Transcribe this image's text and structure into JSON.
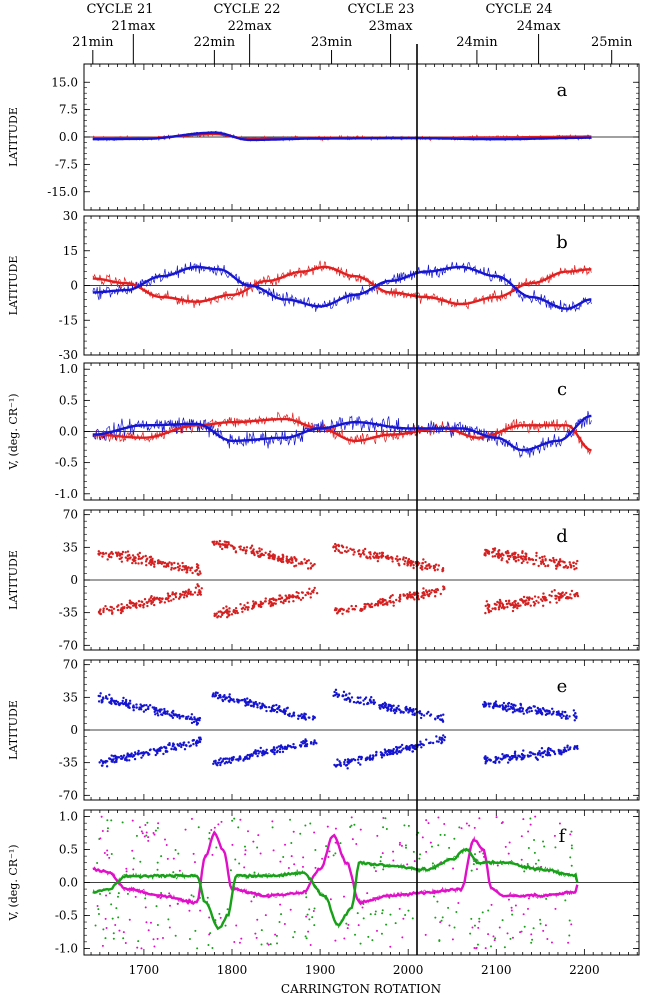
{
  "header": {
    "cycles": [
      "CYCLE 21",
      "CYCLE 22",
      "CYCLE 23",
      "CYCLE 24"
    ],
    "events": [
      {
        "label": "21min",
        "cr": 1642
      },
      {
        "label": "21max",
        "cr": 1688
      },
      {
        "label": "22min",
        "cr": 1780
      },
      {
        "label": "22max",
        "cr": 1820
      },
      {
        "label": "23min",
        "cr": 1913
      },
      {
        "label": "23max",
        "cr": 1980
      },
      {
        "label": "24min",
        "cr": 2078
      },
      {
        "label": "24max",
        "cr": 2148
      },
      {
        "label": "25min",
        "cr": 2231
      }
    ]
  },
  "xaxis": {
    "label": "CARRINGTON ROTATION",
    "range": [
      1632,
      2262
    ],
    "ticks": [
      "1700",
      "1800",
      "1900",
      "2000",
      "2100",
      "2200"
    ],
    "marker_cr": 2010
  },
  "chart_data": [
    {
      "panel": "a",
      "type": "line",
      "ylabel": "LATITUDE",
      "ylim": [
        -20,
        20
      ],
      "yticks": [
        "15.0",
        "7.5",
        "0.0",
        "-7.5",
        "-15.0"
      ],
      "yticks_values": [
        15,
        7.5,
        0,
        -7.5,
        -15
      ],
      "series": [
        {
          "color": "#e02020",
          "smooth_nodes": [
            [
              1642,
              -0.2
            ],
            [
              1700,
              -0.3
            ],
            [
              1780,
              0.8
            ],
            [
              1820,
              -0.5
            ],
            [
              1900,
              -0.2
            ],
            [
              2000,
              -0.3
            ],
            [
              2100,
              -0.1
            ],
            [
              2208,
              0.1
            ]
          ],
          "noise": 0.8
        },
        {
          "color": "#1515d0",
          "smooth_nodes": [
            [
              1642,
              -0.6
            ],
            [
              1700,
              -0.5
            ],
            [
              1780,
              1.2
            ],
            [
              1820,
              -0.8
            ],
            [
              1900,
              -0.4
            ],
            [
              2000,
              -0.3
            ],
            [
              2100,
              -0.6
            ],
            [
              2208,
              -0.2
            ]
          ],
          "noise": 0.6
        }
      ]
    },
    {
      "panel": "b",
      "type": "line",
      "ylabel": "LATITUDE",
      "ylim": [
        -30,
        30
      ],
      "yticks": [
        "30",
        "15",
        "0",
        "-15",
        "-30"
      ],
      "yticks_values": [
        30,
        15,
        0,
        -15,
        -30
      ],
      "series": [
        {
          "color": "#e02020",
          "smooth_nodes": [
            [
              1642,
              3
            ],
            [
              1680,
              1
            ],
            [
              1720,
              -5
            ],
            [
              1760,
              -7
            ],
            [
              1800,
              -4
            ],
            [
              1840,
              2
            ],
            [
              1880,
              6
            ],
            [
              1905,
              8
            ],
            [
              1940,
              4
            ],
            [
              1980,
              -3
            ],
            [
              2020,
              -5
            ],
            [
              2060,
              -8
            ],
            [
              2100,
              -5
            ],
            [
              2140,
              1
            ],
            [
              2180,
              6
            ],
            [
              2208,
              7
            ]
          ],
          "noise": 3.5
        },
        {
          "color": "#1515d0",
          "smooth_nodes": [
            [
              1642,
              -3
            ],
            [
              1680,
              -2
            ],
            [
              1720,
              4
            ],
            [
              1760,
              8
            ],
            [
              1785,
              7
            ],
            [
              1820,
              0
            ],
            [
              1860,
              -6
            ],
            [
              1900,
              -9
            ],
            [
              1940,
              -4
            ],
            [
              1980,
              2
            ],
            [
              2020,
              6
            ],
            [
              2060,
              8
            ],
            [
              2100,
              4
            ],
            [
              2140,
              -5
            ],
            [
              2180,
              -10
            ],
            [
              2208,
              -6
            ]
          ],
          "noise": 4.0
        }
      ]
    },
    {
      "panel": "c",
      "type": "line",
      "ylabel": "V, (deg. CR⁻¹)",
      "ylim": [
        -1.1,
        1.1
      ],
      "yticks": [
        "1.0",
        "0.5",
        "0.0",
        "-0.5",
        "-1.0"
      ],
      "yticks_values": [
        1.0,
        0.5,
        0.0,
        -0.5,
        -1.0
      ],
      "series": [
        {
          "color": "#e02020",
          "smooth_nodes": [
            [
              1642,
              -0.05
            ],
            [
              1700,
              -0.1
            ],
            [
              1760,
              0.1
            ],
            [
              1800,
              0.15
            ],
            [
              1860,
              0.2
            ],
            [
              1900,
              0.05
            ],
            [
              1940,
              -0.15
            ],
            [
              1980,
              -0.05
            ],
            [
              2040,
              0.05
            ],
            [
              2080,
              -0.1
            ],
            [
              2130,
              0.1
            ],
            [
              2180,
              0.1
            ],
            [
              2208,
              -0.3
            ]
          ],
          "noise": 0.15
        },
        {
          "color": "#1515d0",
          "smooth_nodes": [
            [
              1642,
              -0.05
            ],
            [
              1700,
              0.1
            ],
            [
              1760,
              0.12
            ],
            [
              1800,
              -0.15
            ],
            [
              1860,
              -0.1
            ],
            [
              1900,
              0.05
            ],
            [
              1940,
              0.15
            ],
            [
              2000,
              0.05
            ],
            [
              2060,
              0.05
            ],
            [
              2100,
              -0.1
            ],
            [
              2130,
              -0.3
            ],
            [
              2170,
              -0.15
            ],
            [
              2208,
              0.25
            ]
          ],
          "noise": 0.2
        }
      ]
    },
    {
      "panel": "d",
      "type": "scatter",
      "ylabel": "LATITUDE",
      "ylim": [
        -75,
        75
      ],
      "yticks": [
        "70",
        "35",
        "0",
        "-35",
        "-70"
      ],
      "yticks_values": [
        70,
        35,
        0,
        -35,
        -70
      ],
      "color": "#d42020",
      "groups": [
        {
          "x": [
            1648,
            1765
          ],
          "north": [
            30,
            10
          ],
          "south": [
            -35,
            -10
          ],
          "spread": 8
        },
        {
          "x": [
            1778,
            1895
          ],
          "north": [
            40,
            15
          ],
          "south": [
            -38,
            -12
          ],
          "spread": 7
        },
        {
          "x": [
            1915,
            2040
          ],
          "north": [
            35,
            12
          ],
          "south": [
            -35,
            -10
          ],
          "spread": 7
        },
        {
          "x": [
            2085,
            2192
          ],
          "north": [
            30,
            15
          ],
          "south": [
            -30,
            -15
          ],
          "spread": 9
        }
      ]
    },
    {
      "panel": "e",
      "type": "scatter",
      "ylabel": "LATITUDE",
      "ylim": [
        -75,
        75
      ],
      "yticks": [
        "70",
        "35",
        "0",
        "-35",
        "-70"
      ],
      "yticks_values": [
        70,
        35,
        0,
        -35,
        -70
      ],
      "color": "#1515d0",
      "groups": [
        {
          "x": [
            1648,
            1765
          ],
          "north": [
            35,
            10
          ],
          "south": [
            -35,
            -12
          ],
          "spread": 7
        },
        {
          "x": [
            1778,
            1895
          ],
          "north": [
            38,
            12
          ],
          "south": [
            -35,
            -12
          ],
          "spread": 6
        },
        {
          "x": [
            1915,
            2040
          ],
          "north": [
            38,
            12
          ],
          "south": [
            -38,
            -10
          ],
          "spread": 7
        },
        {
          "x": [
            2085,
            2192
          ],
          "north": [
            28,
            15
          ],
          "south": [
            -33,
            -20
          ],
          "spread": 7
        }
      ]
    },
    {
      "panel": "f",
      "type": "line",
      "ylabel": "V, (deg. CR⁻¹)",
      "ylim": [
        -1.1,
        1.1
      ],
      "yticks": [
        "1.0",
        "0.5",
        "0.0",
        "-0.5",
        "-1.0"
      ],
      "yticks_values": [
        1.0,
        0.5,
        0.0,
        -0.5,
        -1.0
      ],
      "series": [
        {
          "color": "#e010c8",
          "smooth_nodes": [
            [
              1642,
              0.2
            ],
            [
              1660,
              0.15
            ],
            [
              1680,
              -0.1
            ],
            [
              1720,
              -0.2
            ],
            [
              1760,
              -0.3
            ],
            [
              1770,
              0.4
            ],
            [
              1780,
              0.75
            ],
            [
              1790,
              0.5
            ],
            [
              1800,
              -0.1
            ],
            [
              1840,
              -0.2
            ],
            [
              1880,
              -0.15
            ],
            [
              1900,
              0.2
            ],
            [
              1915,
              0.7
            ],
            [
              1930,
              0.3
            ],
            [
              1945,
              -0.3
            ],
            [
              1980,
              -0.2
            ],
            [
              2020,
              -0.15
            ],
            [
              2060,
              -0.1
            ],
            [
              2075,
              0.65
            ],
            [
              2085,
              0.5
            ],
            [
              2095,
              -0.1
            ],
            [
              2110,
              -0.2
            ],
            [
              2150,
              -0.2
            ],
            [
              2190,
              -0.15
            ],
            [
              2192,
              -0.05
            ]
          ],
          "noise": 0.06
        },
        {
          "color": "#18a018",
          "smooth_nodes": [
            [
              1642,
              -0.15
            ],
            [
              1660,
              -0.1
            ],
            [
              1680,
              0.1
            ],
            [
              1720,
              0.1
            ],
            [
              1760,
              0.1
            ],
            [
              1770,
              -0.3
            ],
            [
              1785,
              -0.7
            ],
            [
              1795,
              -0.5
            ],
            [
              1805,
              0.1
            ],
            [
              1840,
              0.1
            ],
            [
              1880,
              0.15
            ],
            [
              1905,
              -0.2
            ],
            [
              1920,
              -0.65
            ],
            [
              1935,
              -0.4
            ],
            [
              1945,
              0.3
            ],
            [
              1980,
              0.25
            ],
            [
              2020,
              0.2
            ],
            [
              2050,
              0.35
            ],
            [
              2065,
              0.5
            ],
            [
              2080,
              0.3
            ],
            [
              2095,
              0.3
            ],
            [
              2110,
              0.3
            ],
            [
              2150,
              0.2
            ],
            [
              2190,
              0.1
            ],
            [
              2192,
              0.0
            ]
          ],
          "noise": 0.06
        }
      ],
      "scatter_colors": [
        "#18a018",
        "#e010c8"
      ]
    }
  ]
}
